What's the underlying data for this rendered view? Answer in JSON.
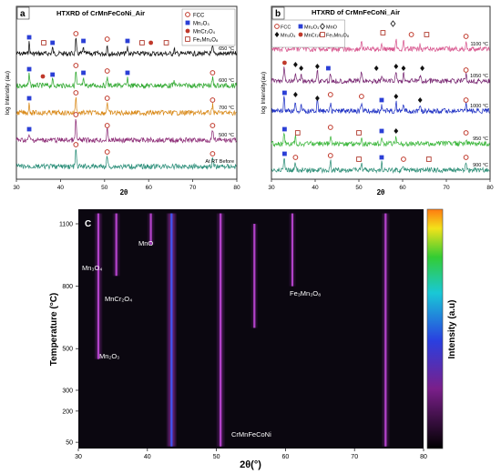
{
  "chart_data": [
    {
      "type": "line",
      "panel_label": "a",
      "title": "HTXRD of CrMnFeCoNi_Air",
      "xlabel": "2θ",
      "ylabel": "log Intensity (au)",
      "xlim": [
        30,
        80
      ],
      "xticks": [
        30,
        40,
        50,
        60,
        70,
        80
      ],
      "legend": {
        "placement": "top-right",
        "entries": [
          {
            "label": "FCC",
            "marker": "circle-open",
            "color": "#c0392b"
          },
          {
            "label": "Mn₂O₃",
            "marker": "square",
            "color": "#2b3fd6"
          },
          {
            "label": "MnCr₂O₄",
            "marker": "circle",
            "color": "#c0392b"
          },
          {
            "label": "Fe₃Mn₃O₈",
            "marker": "square-open",
            "color": "#b03a2e"
          }
        ]
      },
      "series": [
        {
          "name": "650 °C",
          "color": "#111111"
        },
        {
          "name": "600 °C",
          "color": "#2fa82f"
        },
        {
          "name": "700 °C",
          "color": "#d98a1a"
        },
        {
          "name": "500 °C",
          "color": "#8e2f78"
        },
        {
          "name": "At RT Before",
          "color": "#2c8f7a"
        }
      ],
      "peaks_fcc": [
        43.5,
        50.6,
        74.5
      ],
      "peaks_mn2o3": [
        32.9,
        38.2,
        45.2,
        55.2,
        65.8
      ]
    },
    {
      "type": "line",
      "panel_label": "b",
      "title": "HTXRD of CrMnFeCoNi_Air",
      "xlabel": "2θ",
      "ylabel": "log Intensity(au)",
      "xlim": [
        30,
        80
      ],
      "xticks": [
        30,
        40,
        50,
        60,
        70,
        80
      ],
      "legend": {
        "placement": "top-right",
        "entries": [
          {
            "label": "FCC",
            "marker": "circle-open",
            "color": "#c0392b"
          },
          {
            "label": "Mn₂O₃",
            "marker": "square",
            "color": "#2b3fd6"
          },
          {
            "label": "MnO",
            "marker": "diamond-open",
            "color": "#222222"
          },
          {
            "label": "Mn₃O₄",
            "marker": "diamond",
            "color": "#111111"
          },
          {
            "label": "MnCr₂O₄",
            "marker": "circle",
            "color": "#c0392b"
          },
          {
            "label": "Fe₃Mn₃O₈",
            "marker": "square-open",
            "color": "#b03a2e"
          }
        ]
      },
      "series": [
        {
          "name": "1100 °C",
          "color": "#d8578f"
        },
        {
          "name": "1050 °C",
          "color": "#7a2a74"
        },
        {
          "name": "1000 °C",
          "color": "#2032c4"
        },
        {
          "name": "950 °C",
          "color": "#3fb83f"
        },
        {
          "name": "900 °C",
          "color": "#2f8f78"
        }
      ]
    },
    {
      "type": "heatmap",
      "panel_label": "C",
      "xlabel": "2θ(°)",
      "ylabel": "Temperature (°C)",
      "colorbar_label": "Intensity (a.u)",
      "xlim": [
        30,
        80
      ],
      "xticks": [
        30,
        40,
        50,
        60,
        70,
        80
      ],
      "yticks": [
        50,
        200,
        300,
        500,
        800,
        1100
      ],
      "annotations": [
        {
          "label": "MnO"
        },
        {
          "label": "Mn₃O₄"
        },
        {
          "label": "MnCr₂O₄"
        },
        {
          "label": "Mn₂O₃"
        },
        {
          "label": "Fe₃Mn₃O₈"
        },
        {
          "label": "CrMnFeCoNi"
        }
      ],
      "bands": [
        {
          "two_theta": 43.5,
          "t_range": [
            30,
            1150
          ],
          "strength": 1.0
        },
        {
          "two_theta": 50.6,
          "t_range": [
            30,
            1150
          ],
          "strength": 0.6
        },
        {
          "two_theta": 74.5,
          "t_range": [
            30,
            1150
          ],
          "strength": 0.5
        },
        {
          "two_theta": 32.9,
          "t_range": [
            450,
            1150
          ],
          "strength": 0.55
        },
        {
          "two_theta": 35.5,
          "t_range": [
            850,
            1150
          ],
          "strength": 0.45
        },
        {
          "two_theta": 40.5,
          "t_range": [
            1000,
            1150
          ],
          "strength": 0.4
        },
        {
          "two_theta": 55.5,
          "t_range": [
            600,
            1100
          ],
          "strength": 0.3
        },
        {
          "two_theta": 61.0,
          "t_range": [
            800,
            1150
          ],
          "strength": 0.3
        }
      ]
    }
  ]
}
